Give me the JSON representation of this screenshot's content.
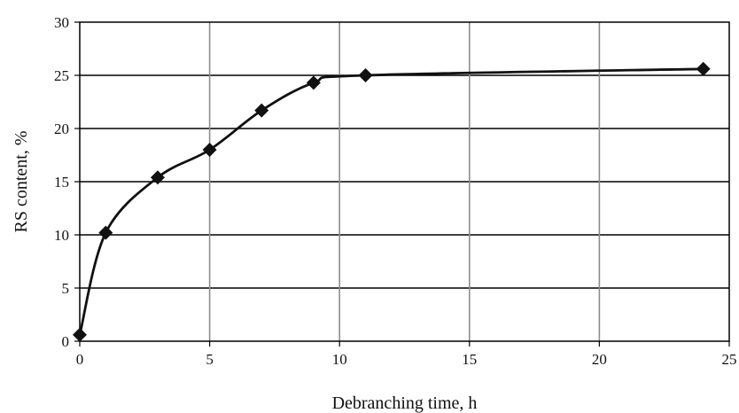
{
  "chart_data": {
    "type": "line",
    "title": "",
    "xlabel": "Debranching time, h",
    "ylabel": "RS content, %",
    "xlim": [
      0,
      25
    ],
    "ylim": [
      0,
      30
    ],
    "x_ticks": [
      0,
      5,
      10,
      15,
      20,
      25
    ],
    "y_ticks": [
      0,
      5,
      10,
      15,
      20,
      25,
      30
    ],
    "x_tick_labels": [
      "0",
      "5",
      "10",
      "15",
      "20",
      "25"
    ],
    "y_tick_labels": [
      "0",
      "5",
      "10",
      "15",
      "20",
      "25",
      "30"
    ],
    "grid": true,
    "legend": false,
    "series": [
      {
        "marker": "diamond",
        "color": "#111111",
        "x": [
          0,
          1,
          3,
          5,
          7,
          9,
          11,
          24
        ],
        "y": [
          0.6,
          10.2,
          15.4,
          18.0,
          21.7,
          24.3,
          25.0,
          25.6
        ]
      }
    ]
  }
}
